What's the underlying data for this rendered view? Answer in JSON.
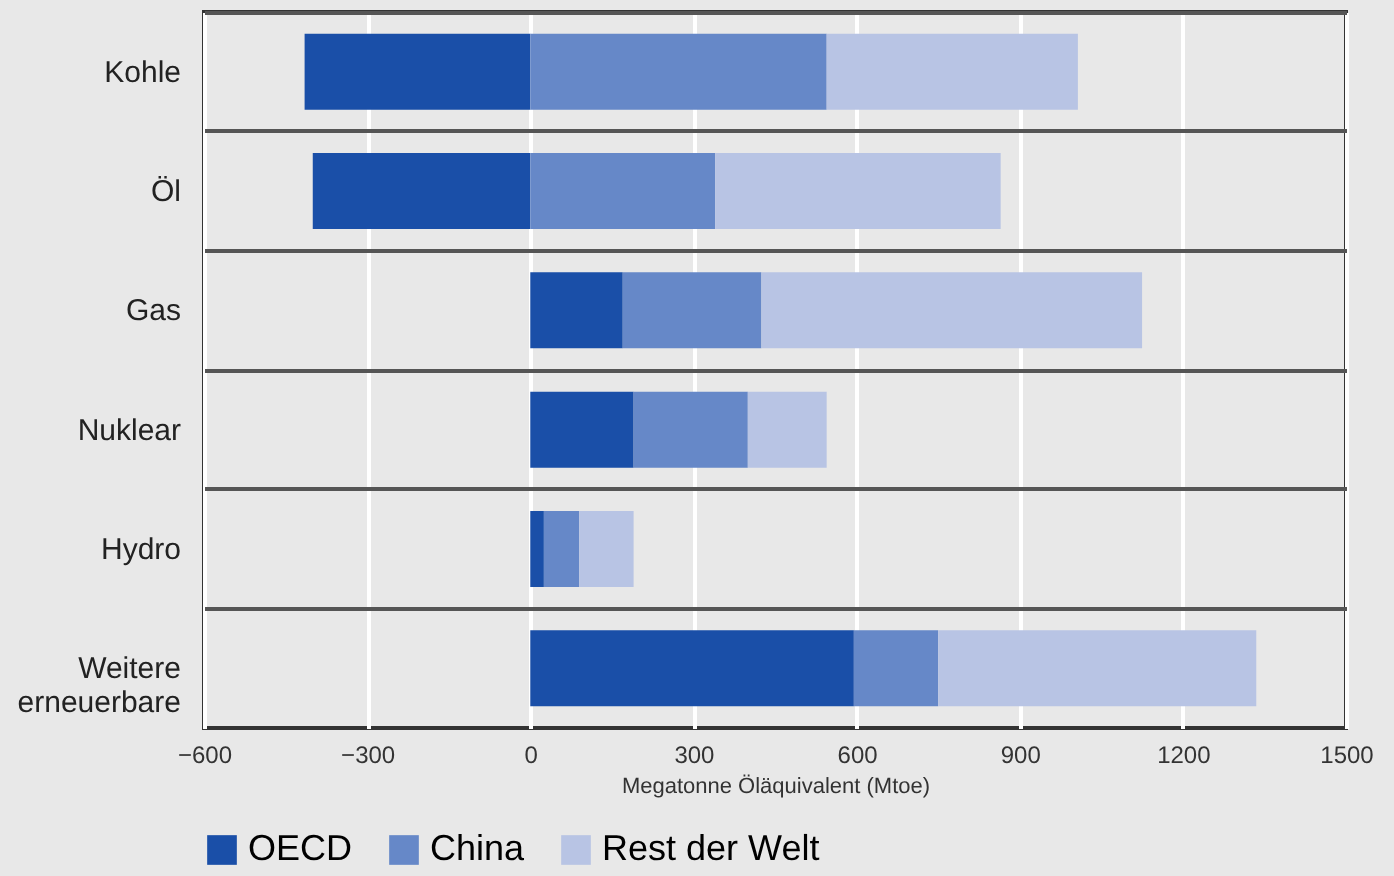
{
  "chart_data": {
    "type": "bar",
    "orientation": "horizontal",
    "stacked": true,
    "categories": [
      "Kohle",
      "Öl",
      "Gas",
      "Nuklear",
      "Hydro",
      "Weitere erneuerbare"
    ],
    "series": [
      {
        "name": "OECD",
        "color": "#1a4fa8",
        "values": [
          -415,
          -400,
          170,
          190,
          25,
          595
        ]
      },
      {
        "name": "China",
        "color": "#6688c8",
        "values": [
          545,
          340,
          255,
          210,
          65,
          155
        ]
      },
      {
        "name": "Rest der Welt",
        "color": "#b8c4e4",
        "values": [
          462,
          525,
          700,
          145,
          100,
          585
        ]
      }
    ],
    "xlabel": "Megatonne Öläquivalent (Mtoe)",
    "xlim": [
      -600,
      1500
    ],
    "xticks": [
      -600,
      -300,
      0,
      300,
      600,
      900,
      1200,
      1500
    ],
    "grid": "x",
    "legend": "bottom"
  }
}
